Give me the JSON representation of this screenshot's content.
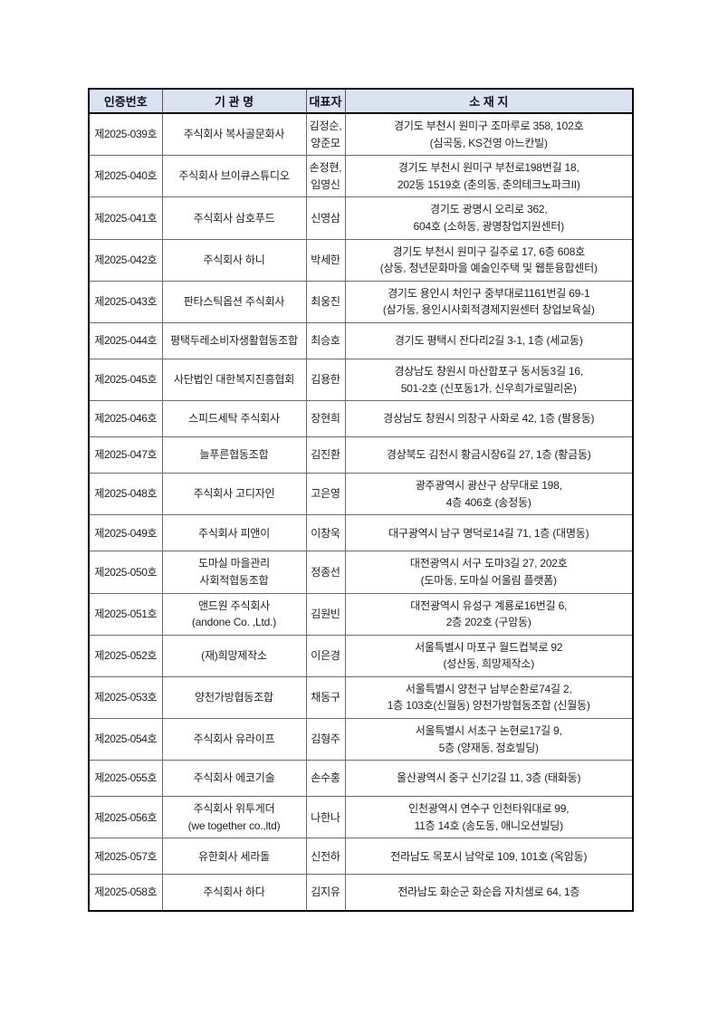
{
  "document": {
    "colors": {
      "header_bg": "#dbe3f3",
      "outer_border": "#000000",
      "inner_border": "#6b6b6b",
      "text": "#1f1f1f"
    },
    "columns": [
      {
        "key": "cert_no",
        "label": "인증번호"
      },
      {
        "key": "org_name",
        "label": "기 관 명"
      },
      {
        "key": "representative",
        "label": "대표자"
      },
      {
        "key": "address",
        "label": "소 재 지"
      }
    ],
    "rows": [
      {
        "cert_no": "제2025-039호",
        "org_name": "주식회사 복사골문화사",
        "representative": "김정순,\n양준모",
        "address": "경기도 부천시 원미구 조마루로 358, 102호\n(심곡동, KS건영 아느칸빌)"
      },
      {
        "cert_no": "제2025-040호",
        "org_name": "주식회사 브이큐스튜디오",
        "representative": "손정현,\n임영신",
        "address": "경기도 부천시 원미구 부천로198번길 18,\n202동 1519호 (춘의동, 춘의테크노파크II)"
      },
      {
        "cert_no": "제2025-041호",
        "org_name": "주식회사 삼호푸드",
        "representative": "신영삼",
        "address": "경기도 광명시 오리로 362,\n604호 (소하동, 광명창업지원센터)"
      },
      {
        "cert_no": "제2025-042호",
        "org_name": "주식회사 하니",
        "representative": "박세한",
        "address": "경기도 부천시 원미구 길주로 17, 6층 608호\n(상동, 청년문화마을 예술인주택 및 웹툰융합센터)"
      },
      {
        "cert_no": "제2025-043호",
        "org_name": "판타스틱옵션 주식회사",
        "representative": "최웅진",
        "address": "경기도 용인시 처인구 중부대로1161번길 69-1\n(삼가동, 용인시사회적경제지원센터 창업보육실)"
      },
      {
        "cert_no": "제2025-044호",
        "org_name": "평택두레소비자생활협동조합",
        "representative": "최승호",
        "address": "경기도 평택시 잔다리2길 3-1, 1층 (세교동)"
      },
      {
        "cert_no": "제2025-045호",
        "org_name": "사단법인 대한복지진흥협회",
        "representative": "김용한",
        "address": "경상남도 창원시 마산합포구 동서동3길 16,\n501-2호 (신포동1가, 신우희가로밀리온)"
      },
      {
        "cert_no": "제2025-046호",
        "org_name": "스피드세탁 주식회사",
        "representative": "장현희",
        "address": "경상남도 창원시 의창구 사화로 42, 1층 (팔용동)"
      },
      {
        "cert_no": "제2025-047호",
        "org_name": "늘푸른협동조합",
        "representative": "김진환",
        "address": "경상북도 김천시 황금시장6길 27, 1층 (황금동)"
      },
      {
        "cert_no": "제2025-048호",
        "org_name": "주식회사 고디자인",
        "representative": "고은영",
        "address": "광주광역시 광산구 상무대로 198,\n4층 406호 (송정동)"
      },
      {
        "cert_no": "제2025-049호",
        "org_name": "주식회사 피앤이",
        "representative": "이창욱",
        "address": "대구광역시 남구 명덕로14길 71, 1층 (대명동)"
      },
      {
        "cert_no": "제2025-050호",
        "org_name": "도마실 마을관리\n사회적협동조합",
        "representative": "정종선",
        "address": "대전광역시 서구 도마3길 27, 202호\n(도마동, 도마실 어울림 플랫폼)"
      },
      {
        "cert_no": "제2025-051호",
        "org_name": "앤드원 주식회사\n(andone Co. ,Ltd.)",
        "representative": "김원빈",
        "address": "대전광역시 유성구 계룡로16번길 6,\n2층 202호 (구암동)"
      },
      {
        "cert_no": "제2025-052호",
        "org_name": "(재)희망제작소",
        "representative": "이은경",
        "address": "서울특별시 마포구 월드컵북로 92\n(성산동, 희망제작소)"
      },
      {
        "cert_no": "제2025-053호",
        "org_name": "양천가방협동조합",
        "representative": "채동구",
        "address": "서울특별시 양천구 남부순환로74길 2,\n1층 103호(신월동) 양천가방협동조합 (신월동)"
      },
      {
        "cert_no": "제2025-054호",
        "org_name": "주식회사 유라이프",
        "representative": "김형주",
        "address": "서울특별시 서초구 논현로17길 9,\n5층 (양재동, 정호빌딩)"
      },
      {
        "cert_no": "제2025-055호",
        "org_name": "주식회사 에코기술",
        "representative": "손수홍",
        "address": "울산광역시 중구 신기2길 11, 3층 (태화동)"
      },
      {
        "cert_no": "제2025-056호",
        "org_name": "주식회사 위투게더\n(we together co.,ltd)",
        "representative": "나한나",
        "address": "인천광역시 연수구 인천타워대로 99,\n11층 14호 (송도동, 애니오션빌딩)"
      },
      {
        "cert_no": "제2025-057호",
        "org_name": "유한회사 세라돌",
        "representative": "신전하",
        "address": "전라남도 목포시 남악로 109, 101호 (옥암동)"
      },
      {
        "cert_no": "제2025-058호",
        "org_name": "주식회사 하다",
        "representative": "김지유",
        "address": "전라남도 화순군 화순읍 자치샘로 64, 1층"
      }
    ]
  }
}
